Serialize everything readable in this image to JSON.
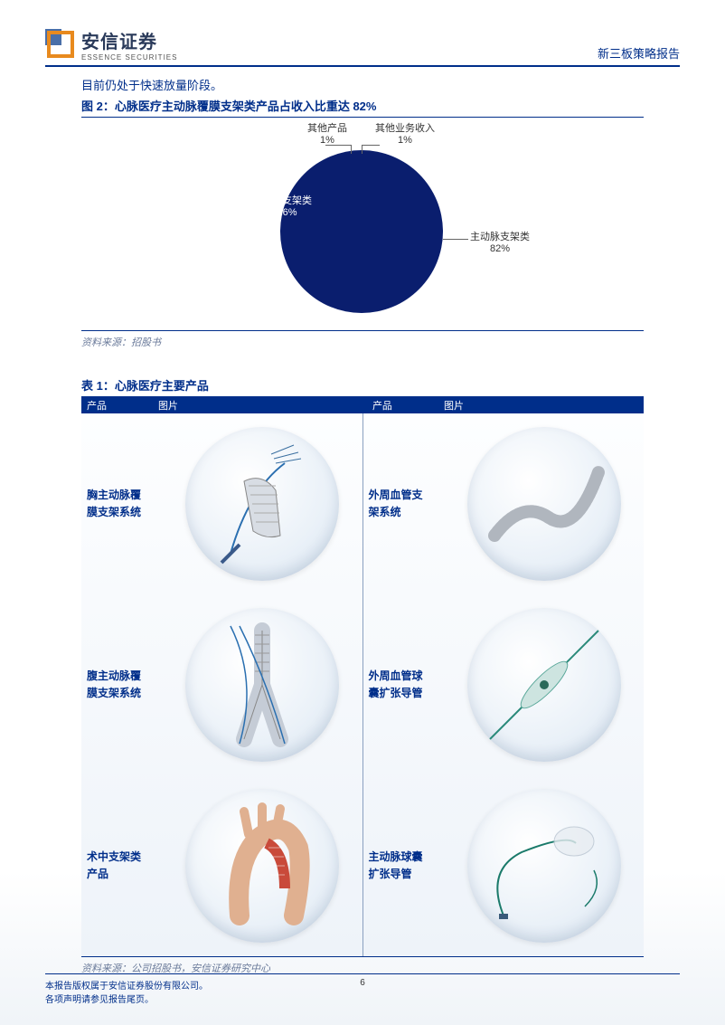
{
  "header": {
    "company_cn": "安信证券",
    "company_en": "ESSENCE SECURITIES",
    "report_type": "新三板策略报告"
  },
  "intro_text": "目前仍处于快速放量阶段。",
  "figure2": {
    "title": "图 2：心脉医疗主动脉覆膜支架类产品占收入比重达 82%",
    "type": "pie",
    "slices": [
      {
        "label": "主动脉支架类",
        "pct": "82%",
        "value": 82,
        "color": "#0a1e6e"
      },
      {
        "label": "术中支架类",
        "pct": "16%",
        "value": 16,
        "color": "#4a6fc8"
      },
      {
        "label": "其他产品",
        "pct": "1%",
        "value": 1,
        "color": "#e85fc4"
      },
      {
        "label": "其他业务收入",
        "pct": "1%",
        "value": 1,
        "color": "#7aa8e0"
      }
    ],
    "source": "资料来源：招股书"
  },
  "table1": {
    "title": "表 1：心脉医疗主要产品",
    "col_product": "产品",
    "col_image": "图片",
    "rows_left": [
      {
        "name": "胸主动脉覆\n膜支架系统"
      },
      {
        "name": "腹主动脉覆\n膜支架系统"
      },
      {
        "name": "术中支架类\n产品"
      }
    ],
    "rows_right": [
      {
        "name": "外周血管支\n架系统"
      },
      {
        "name": "外周血管球\n囊扩张导管"
      },
      {
        "name": "主动脉球囊\n扩张导管"
      }
    ],
    "source": "资料来源：公司招股书，安信证券研究中心"
  },
  "footer": {
    "line1": "本报告版权属于安信证券股份有限公司。",
    "line2": "各项声明请参见报告尾页。",
    "page": "6"
  },
  "colors": {
    "brand_blue": "#002e8a",
    "brand_orange": "#e88a1e"
  }
}
